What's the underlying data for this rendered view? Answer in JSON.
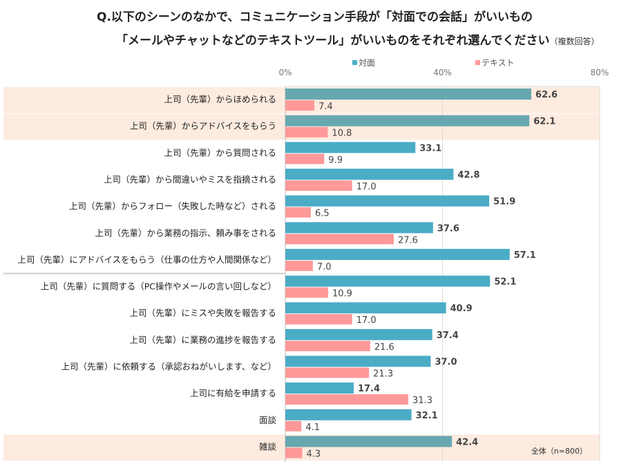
{
  "chart_data": {
    "type": "bar",
    "orientation": "horizontal",
    "title_line1": "Q.以下のシーンのなかで、コミュニケーション手段が「対面での会話」がいいもの",
    "title_line2": "「メールやチャットなどのテキストツール」がいいものをそれぞれ選んでください",
    "title_note": "（複数回答）",
    "annotation": "全体（n=800）",
    "xlim": [
      0,
      80
    ],
    "xticks": [
      "0%",
      "40%",
      "80%"
    ],
    "grid": true,
    "legend_position": "top",
    "categories": [
      "上司（先輩）からほめられる",
      "上司（先輩）からアドバイスをもらう",
      "上司（先輩）から質問される",
      "上司（先輩）から間違いやミスを指摘される",
      "上司（先輩）からフォロー（失敗した時など）される",
      "上司（先輩）から業務の指示、頼み事をされる",
      "上司（先輩）にアドバイスをもらう（仕事の仕方や人間関係など）",
      "上司（先輩）に質問する（PC操作やメールの言い回しなど）",
      "上司（先輩）にミスや失敗を報告する",
      "上司（先輩）に業務の進捗を報告する",
      "上司（先輩）に依頼する（承認おねがいします、など）",
      "上司に有給を申請する",
      "面談",
      "雑談"
    ],
    "highlighted_categories": [
      0,
      1,
      13
    ],
    "series": [
      {
        "name": "対面",
        "color": "#4bacc6",
        "highlight_color": "#67a8b0",
        "values": [
          62.6,
          62.1,
          33.1,
          42.8,
          51.9,
          37.6,
          57.1,
          52.1,
          40.9,
          37.4,
          37.0,
          17.4,
          32.1,
          42.4
        ]
      },
      {
        "name": "テキスト",
        "color": "#ff9999",
        "values": [
          7.4,
          10.8,
          9.9,
          17.0,
          6.5,
          27.6,
          7.0,
          10.9,
          17.0,
          21.6,
          21.3,
          31.3,
          4.1,
          4.3
        ]
      }
    ],
    "highlight_bg": "#fdebdf"
  }
}
